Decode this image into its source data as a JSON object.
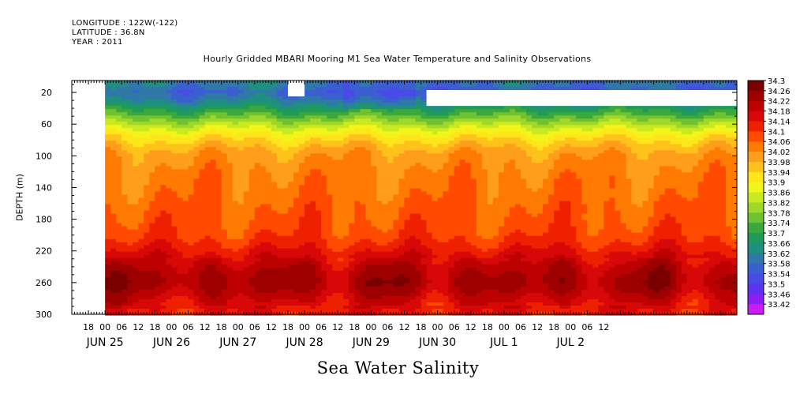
{
  "header": {
    "longitude": "LONGITUDE : 122W(-122)",
    "latitude": "LATITUDE : 36.8N",
    "year": "YEAR : 2011"
  },
  "chart_data": {
    "type": "heatmap",
    "title": "Hourly Gridded MBARI Mooring M1 Sea Water Temperature and Salinity Observations",
    "caption": "Sea Water Salinity",
    "ylabel": "DEPTH (m)",
    "xlabel": "",
    "x_range_hours_from_jun25_00": [
      -12,
      228
    ],
    "x_tick_step_hours": 6,
    "x_day_labels": [
      {
        "label": "JUN 25",
        "hour": 0
      },
      {
        "label": "JUN 26",
        "hour": 24
      },
      {
        "label": "JUN 27",
        "hour": 48
      },
      {
        "label": "JUN 28",
        "hour": 72
      },
      {
        "label": "JUN 29",
        "hour": 96
      },
      {
        "label": "JUN 30",
        "hour": 120
      },
      {
        "label": "JUL  1",
        "hour": 144
      },
      {
        "label": "JUL  2",
        "hour": 168
      }
    ],
    "x_hour_labels": [
      "18",
      "00",
      "06",
      "12",
      "18",
      "00",
      "06",
      "12",
      "18",
      "00",
      "06",
      "12",
      "18",
      "00",
      "06",
      "12",
      "18",
      "00",
      "06",
      "12",
      "18",
      "00",
      "06",
      "12",
      "18",
      "00",
      "06",
      "12",
      "18",
      "00",
      "06",
      "12"
    ],
    "y_ticks": [
      20,
      60,
      100,
      140,
      180,
      220,
      260,
      300
    ],
    "ylim": [
      5,
      300
    ],
    "y_inverted": true,
    "colorbar": {
      "levels": [
        34.3,
        34.26,
        34.22,
        34.18,
        34.14,
        34.1,
        34.06,
        34.02,
        33.98,
        33.94,
        33.9,
        33.86,
        33.82,
        33.78,
        33.74,
        33.7,
        33.66,
        33.62,
        33.58,
        33.54,
        33.5,
        33.46,
        33.42
      ],
      "labels": [
        "34.3",
        "34.26",
        "34.22",
        "34.18",
        "34.14",
        "34.1",
        "34.06",
        "34.02",
        "33.98",
        "33.94",
        "33.9",
        "33.86",
        "33.82",
        "33.78",
        "33.74",
        "33.7",
        "33.66",
        "33.62",
        "33.58",
        "33.54",
        "33.5",
        "33.46",
        "33.42"
      ],
      "colors": [
        "#7a0000",
        "#9e0000",
        "#bd0000",
        "#d80808",
        "#ee2000",
        "#ff4a00",
        "#ff7a00",
        "#ff9e1a",
        "#ffc21a",
        "#ffe61a",
        "#f2f51a",
        "#c8ea23",
        "#9ed82a",
        "#6fc232",
        "#3aa83e",
        "#1f9a5a",
        "#1f8f80",
        "#2f78a8",
        "#3a5fd0",
        "#4a4ae6",
        "#5e33f0",
        "#8a1ef5",
        "#c81ef5"
      ]
    },
    "depth_profile": {
      "depth_m": [
        10,
        20,
        30,
        40,
        50,
        60,
        70,
        80,
        90,
        100,
        110,
        120,
        130,
        140,
        150,
        160,
        170,
        180,
        190,
        200,
        210,
        220,
        230,
        240,
        250,
        260,
        270,
        280,
        290,
        300
      ],
      "salinity": [
        33.63,
        33.59,
        33.63,
        33.7,
        33.77,
        33.84,
        33.91,
        33.96,
        34.0,
        34.03,
        34.04,
        34.05,
        34.06,
        34.065,
        34.07,
        34.08,
        34.085,
        34.09,
        34.1,
        34.11,
        34.13,
        34.16,
        34.19,
        34.22,
        34.24,
        34.25,
        34.23,
        34.2,
        34.17,
        34.14
      ]
    },
    "no_data": {
      "before_hour": 0,
      "gaps": [
        {
          "hour_start": 66,
          "hour_end": 72,
          "depth_top": 5,
          "depth_bottom": 25
        },
        {
          "hour_start": 116,
          "hour_end": 228,
          "depth_top": 17,
          "depth_bottom": 37
        }
      ]
    }
  }
}
